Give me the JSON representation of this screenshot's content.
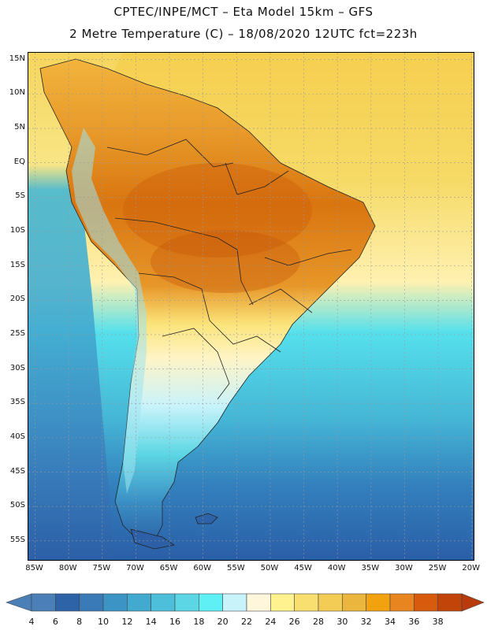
{
  "header": {
    "line1": "CPTEC/INPE/MCT –  Eta Model 15km – GFS",
    "line2": "2 Metre Temperature (C) – 18/08/2020 12UTC fct=223h"
  },
  "map": {
    "lat_labels": [
      "15N",
      "10N",
      "5N",
      "EQ",
      "5S",
      "10S",
      "15S",
      "20S",
      "25S",
      "30S",
      "35S",
      "40S",
      "45S",
      "50S",
      "55S"
    ],
    "lon_labels": [
      "85W",
      "80W",
      "75W",
      "70W",
      "65W",
      "60W",
      "55W",
      "50W",
      "45W",
      "40W",
      "35W",
      "30W",
      "25W",
      "20W"
    ],
    "extent": {
      "lon_min": -86,
      "lon_max": -19.5,
      "lat_min": -58,
      "lat_max": 16
    }
  },
  "colorbar": {
    "labels": [
      "4",
      "6",
      "8",
      "10",
      "12",
      "14",
      "16",
      "18",
      "20",
      "22",
      "24",
      "26",
      "28",
      "30",
      "32",
      "34",
      "36",
      "38"
    ],
    "colors": [
      "#4a7fb8",
      "#2f63a8",
      "#3a7ab6",
      "#3c94c4",
      "#43aacf",
      "#4dbfda",
      "#5cd6e4",
      "#5ef0f4",
      "#c9f3fb",
      "#fff6dc",
      "#fff28f",
      "#f8df70",
      "#f3cc55",
      "#eab63e",
      "#f2a20f",
      "#e9851f",
      "#d85a0c",
      "#c24408",
      "#b93a0d"
    ]
  }
}
